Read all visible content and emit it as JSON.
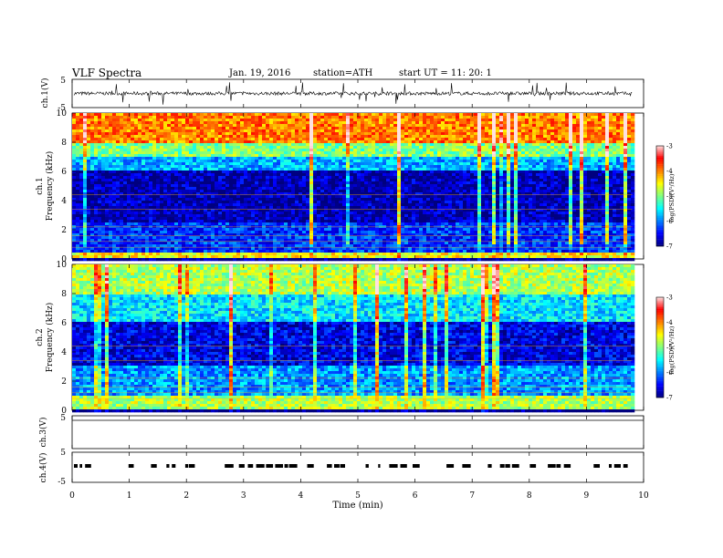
{
  "header": {
    "title": "VLF  Spectra",
    "date": "Jan. 19, 2016",
    "station": "station=ATH",
    "start": "start  UT  =    11: 20: 1"
  },
  "chart_data": [
    {
      "type": "line",
      "panel": "ch1-waveform",
      "ylabel": "ch.1(V)",
      "ylim": [
        -5,
        5
      ],
      "yticks": [
        "5",
        "-5"
      ],
      "note": "noisy waveform centred near 0 V with occasional spikes",
      "color": "#000000"
    },
    {
      "type": "heatmap",
      "panel": "ch1-spectrogram",
      "ylabel": "ch.1\nFrequency (kHz)",
      "ylim": [
        0,
        10
      ],
      "yticks": [
        "0",
        "2",
        "4",
        "6",
        "8",
        "10"
      ],
      "bands": [
        {
          "f_from": 8.0,
          "f_to": 10.0,
          "logPSD": -4.0
        },
        {
          "f_from": 7.0,
          "f_to": 8.0,
          "logPSD": -5.0
        },
        {
          "f_from": 6.0,
          "f_to": 7.0,
          "logPSD": -5.8
        },
        {
          "f_from": 2.5,
          "f_to": 6.0,
          "logPSD": -6.8
        },
        {
          "f_from": 0.5,
          "f_to": 2.5,
          "logPSD": -6.3
        },
        {
          "f_from": 0.0,
          "f_to": 0.5,
          "logPSD": -4.5
        }
      ],
      "colorbar": {
        "label": "log(PSD)(V²/Hz)",
        "range": [
          -7,
          -3
        ],
        "ticks": [
          "-3",
          "-4",
          "-5",
          "-6",
          "-7"
        ]
      }
    },
    {
      "type": "heatmap",
      "panel": "ch2-spectrogram",
      "ylabel": "ch.2\nFrequency (kHz)",
      "ylim": [
        0,
        10
      ],
      "yticks": [
        "0",
        "2",
        "4",
        "6",
        "8",
        "10"
      ],
      "bands": [
        {
          "f_from": 8.0,
          "f_to": 10.0,
          "logPSD": -4.8
        },
        {
          "f_from": 6.0,
          "f_to": 8.0,
          "logPSD": -5.6
        },
        {
          "f_from": 3.0,
          "f_to": 6.0,
          "logPSD": -6.6
        },
        {
          "f_from": 1.0,
          "f_to": 3.0,
          "logPSD": -5.9
        },
        {
          "f_from": 0.0,
          "f_to": 1.0,
          "logPSD": -4.8
        }
      ],
      "colorbar": {
        "label": "log(PSD)(V²/Hz)",
        "range": [
          -7,
          -3
        ],
        "ticks": [
          "-3",
          "-4",
          "-5",
          "-6",
          "-7"
        ]
      }
    },
    {
      "type": "line",
      "panel": "ch3-waveform",
      "ylabel": "ch.3(V)",
      "ylim": [
        -5,
        5
      ],
      "yticks": [
        "5"
      ],
      "note": "flat trace"
    },
    {
      "type": "line",
      "panel": "ch4-waveform",
      "ylabel": "ch.4(V)",
      "ylim": [
        -5,
        5
      ],
      "yticks": [
        "5",
        "-5"
      ],
      "note": "intermittent pulses near 0 V"
    }
  ],
  "xaxis": {
    "label": "Time  (min)",
    "xlim": [
      0,
      10
    ],
    "ticks": [
      "0",
      "1",
      "2",
      "3",
      "4",
      "5",
      "6",
      "7",
      "8",
      "9",
      "10"
    ]
  },
  "colors": {
    "colormap": [
      "#00007f",
      "#0000ff",
      "#0080ff",
      "#00ffff",
      "#80ff80",
      "#ffff00",
      "#ff8000",
      "#ff0000",
      "#ffe0e0"
    ]
  }
}
